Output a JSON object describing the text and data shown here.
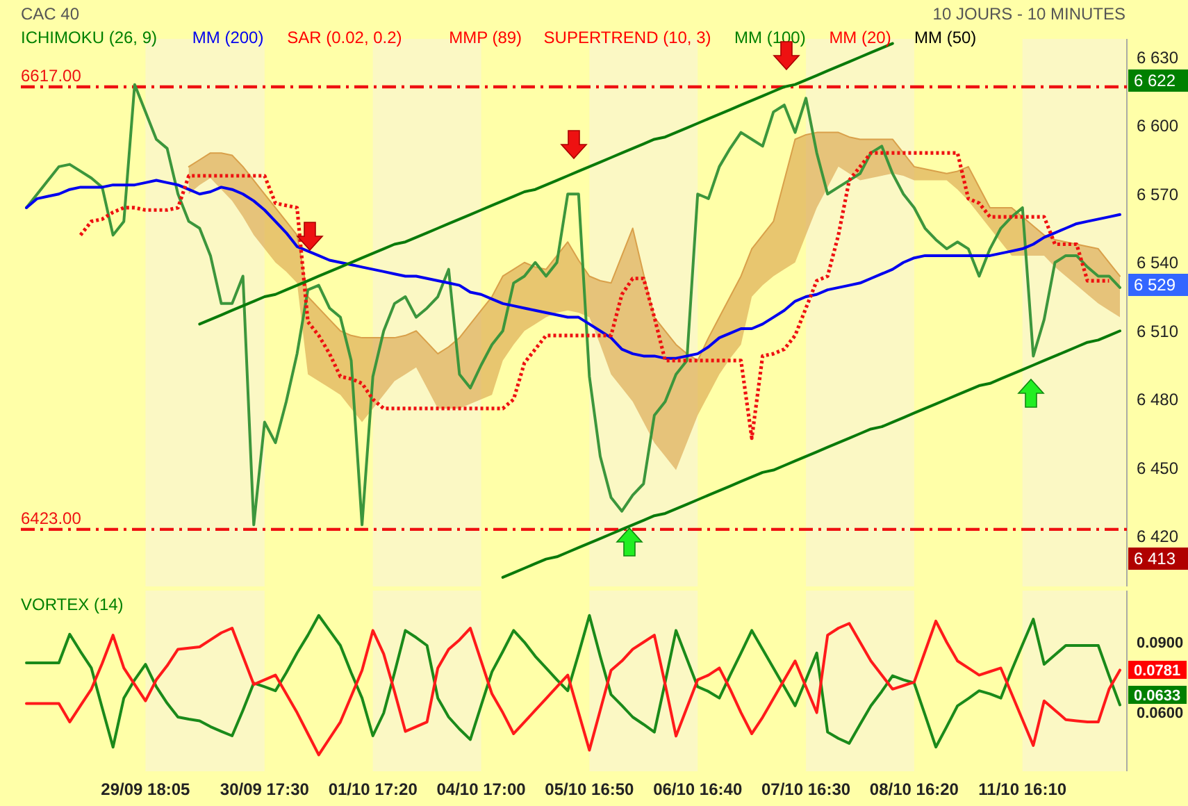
{
  "chart_data": [
    {
      "type": "line",
      "title": "CAC 40",
      "subtitle": "10 JOURS - 10 MINUTES",
      "annotations": [
        "ICHIMOKU (26, 9)",
        "MM (200)",
        "SAR (0.02, 0.2)",
        "MMP (89)",
        "SUPERTREND (10, 3)",
        "MM (100)",
        "MM (20)",
        "MM (50)",
        "6 622",
        "6 529",
        "6 413"
      ],
      "categories": [
        null,
        null,
        null,
        null,
        null,
        null,
        null,
        null,
        null,
        null,
        null,
        null,
        null,
        null,
        null,
        null,
        null,
        null,
        null,
        null,
        null,
        null,
        null,
        null,
        null,
        null,
        null,
        null,
        null,
        null,
        null,
        null,
        null,
        null,
        null,
        null,
        null,
        null,
        null,
        null,
        null,
        null,
        null,
        null,
        null,
        null,
        null,
        null,
        null,
        null,
        null,
        null,
        null,
        null,
        null,
        null,
        null,
        null,
        null,
        null,
        null,
        null,
        null,
        null,
        null,
        null,
        null,
        null,
        null,
        null,
        null,
        null,
        null,
        null,
        null,
        null,
        null,
        null,
        null,
        null,
        null,
        null,
        null,
        null,
        null,
        null,
        null,
        null,
        null,
        null,
        null,
        null,
        null,
        null,
        null,
        null,
        null,
        null,
        null,
        null,
        null,
        null
      ],
      "ylim": [
        6398,
        6638
      ],
      "yticks": [
        {
          "value": 6420,
          "label": "6 420"
        },
        {
          "value": 6450,
          "label": "6 450"
        },
        {
          "value": 6480,
          "label": "6 480"
        },
        {
          "value": 6510,
          "label": "6 510"
        },
        {
          "value": 6540,
          "label": "6 540"
        },
        {
          "value": 6570,
          "label": "6 570"
        },
        {
          "value": 6600,
          "label": "6 600"
        },
        {
          "value": 6630,
          "label": "6 630"
        }
      ],
      "tick_labels": "y",
      "grid": false,
      "marker": "none",
      "ref_lines": [
        {
          "axis": "y",
          "value": 6617,
          "label": "6617.00",
          "color": "#ee1111",
          "line_style": "dashed"
        },
        {
          "axis": "y",
          "value": 6423,
          "label": "6423.00",
          "color": "#ee1111",
          "line_style": "dashed"
        }
      ],
      "series": [
        {
          "color": "#d9a04a",
          "values": [
            null,
            null,
            null,
            null,
            null,
            null,
            null,
            null,
            null,
            null,
            null,
            null,
            null,
            null,
            null,
            6582,
            6585,
            6588,
            6588,
            6587,
            6582,
            6576,
            6570,
            6564,
            6558,
            6552,
            6525,
            6520,
            6515,
            6510,
            6508,
            6507,
            6507,
            6507,
            6507,
            6508,
            6510,
            6505,
            6500,
            6503,
            6507,
            6513,
            6519,
            6525,
            6534,
            6537,
            6540,
            6538,
            6537,
            6543,
            6549,
            6541,
            6534,
            6532,
            6531,
            6543,
            6555,
            6535,
            6516,
            6510,
            6504,
            6500,
            6497,
            6507,
            6516,
            6525,
            6534,
            6546,
            6552,
            6558,
            6576,
            6594,
            6596,
            6597,
            6597,
            6597,
            6595,
            6594,
            6594,
            6594,
            6594,
            6588,
            6582,
            6581,
            6580,
            6579,
            6580,
            6582,
            6573,
            6564,
            6564,
            6564,
            6560,
            6556,
            6552,
            6550,
            6549,
            6548,
            6547,
            6546,
            6540,
            6534
          ],
          "upper": [
            null,
            null,
            null,
            null,
            null,
            null,
            null,
            null,
            null,
            null,
            null,
            null,
            null,
            null,
            null,
            6582,
            6585,
            6588,
            6588,
            6587,
            6582,
            6576,
            6570,
            6564,
            6558,
            6552,
            6525,
            6520,
            6515,
            6510,
            6508,
            6507,
            6507,
            6507,
            6507,
            6508,
            6510,
            6505,
            6500,
            6503,
            6507,
            6513,
            6519,
            6525,
            6534,
            6537,
            6540,
            6538,
            6537,
            6543,
            6549,
            6541,
            6534,
            6532,
            6531,
            6543,
            6555,
            6535,
            6516,
            6510,
            6504,
            6500,
            6497,
            6507,
            6516,
            6525,
            6534,
            6546,
            6552,
            6558,
            6576,
            6594,
            6596,
            6597,
            6597,
            6597,
            6595,
            6594,
            6594,
            6594,
            6594,
            6588,
            6582,
            6581,
            6580,
            6579,
            6580,
            6582,
            6573,
            6564,
            6564,
            6564,
            6560,
            6556,
            6552,
            6550,
            6549,
            6548,
            6547,
            6546,
            6540,
            6534
          ],
          "lower": [
            null,
            null,
            null,
            null,
            null,
            null,
            null,
            null,
            null,
            null,
            null,
            null,
            null,
            null,
            null,
            6570,
            6574,
            6577,
            6572,
            6567,
            6560,
            6552,
            6546,
            6540,
            6536,
            6531,
            6491,
            6488,
            6485,
            6482,
            6476,
            6470,
            6476,
            6482,
            6488,
            6491,
            6494,
            6485,
            6476,
            6476,
            6476,
            6478,
            6480,
            6482,
            6497,
            6504,
            6510,
            6513,
            6516,
            6518,
            6519,
            6518,
            6516,
            6504,
            6491,
            6485,
            6479,
            6470,
            6461,
            6455,
            6449,
            6461,
            6473,
            6482,
            6491,
            6498,
            6504,
            6525,
            6530,
            6534,
            6537,
            6540,
            6552,
            6564,
            6573,
            6582,
            6579,
            6576,
            6577,
            6578,
            6579,
            6578,
            6576,
            6576,
            6576,
            6576,
            6572,
            6567,
            6561,
            6555,
            6549,
            6543,
            6543,
            6543,
            6543,
            6538,
            6534,
            6530,
            6526,
            6522,
            6519,
            6516
          ]
        },
        {
          "color": "#3c963c",
          "values": [
            6564,
            6570,
            6576,
            6582,
            6583,
            6580,
            6577,
            6573,
            6552,
            6558,
            6618,
            6606,
            6594,
            6590,
            6570,
            6558,
            6555,
            6543,
            6522,
            6522,
            6534,
            6425,
            6470,
            6461,
            6479,
            6500,
            6528,
            6530,
            6520,
            6516,
            6497,
            6425,
            6490,
            6510,
            6522,
            6525,
            6516,
            6520,
            6525,
            6537,
            6491,
            6485,
            6495,
            6504,
            6510,
            6531,
            6534,
            6540,
            6534,
            6540,
            6570,
            6570,
            6490,
            6455,
            6437,
            6431,
            6438,
            6443,
            6473,
            6479,
            6491,
            6497,
            6570,
            6568,
            6582,
            6590,
            6597,
            6594,
            6591,
            6606,
            6609,
            6597,
            6612,
            6588,
            6570,
            6573,
            6576,
            6579,
            6588,
            6591,
            6579,
            6570,
            6564,
            6555,
            6550,
            6546,
            6549,
            6546,
            6534,
            6546,
            6555,
            6560,
            6564,
            6499,
            6515,
            6540,
            6543,
            6543,
            6538,
            6534,
            6534,
            6529
          ]
        },
        {
          "color": "#0000ee",
          "values": [
            6564,
            6568,
            6569,
            6570,
            6572,
            6573,
            6573,
            6573,
            6574,
            6574,
            6574,
            6575,
            6576,
            6575,
            6574,
            6572,
            6570,
            6571,
            6573,
            6572,
            6570,
            6567,
            6563,
            6558,
            6553,
            6547,
            6545,
            6543,
            6541,
            6540,
            6539,
            6538,
            6537,
            6536,
            6535,
            6534,
            6534,
            6533,
            6532,
            6531,
            6530,
            6527,
            6526,
            6524,
            6522,
            6521,
            6520,
            6519,
            6518,
            6517,
            6516,
            6516,
            6513,
            6510,
            6507,
            6502,
            6500,
            6499,
            6499,
            6498,
            6498,
            6499,
            6500,
            6503,
            6507,
            6509,
            6511,
            6511,
            6513,
            6516,
            6519,
            6523,
            6525,
            6526,
            6528,
            6529,
            6530,
            6531,
            6533,
            6535,
            6537,
            6540,
            6542,
            6543,
            6543,
            6543,
            6543,
            6543,
            6543,
            6543,
            6544,
            6545,
            6546,
            6548,
            6551,
            6553,
            6555,
            6557,
            6558,
            6559,
            6560,
            6561
          ]
        },
        {
          "color": "#ee1111",
          "line_style": "dotted",
          "values": [
            null,
            null,
            null,
            null,
            null,
            6552,
            6558,
            6559,
            6562,
            6564,
            6564,
            6563,
            6563,
            6563,
            6564,
            6578,
            6578,
            6578,
            6578,
            6578,
            6578,
            6578,
            6578,
            6566,
            6565,
            6564,
            6514,
            6508,
            6500,
            6490,
            6489,
            6487,
            6480,
            6476,
            6476,
            6476,
            6476,
            6476,
            6476,
            6476,
            6476,
            6476,
            6476,
            6476,
            6476,
            6480,
            6496,
            6502,
            6508,
            6508,
            6508,
            6508,
            6508,
            6508,
            6508,
            6526,
            6533,
            6533,
            6516,
            6497,
            6497,
            6497,
            6497,
            6497,
            6497,
            6497,
            6497,
            6463,
            6499,
            6500,
            6502,
            6508,
            6520,
            6532,
            6534,
            6552,
            6576,
            6582,
            6588,
            6588,
            6588,
            6588,
            6588,
            6588,
            6588,
            6588,
            6588,
            6568,
            6566,
            6560,
            6560,
            6560,
            6560,
            6560,
            6560,
            6548,
            6548,
            6548,
            6532,
            6532,
            6532,
            null
          ]
        },
        {
          "color": "#0a7a0a",
          "values": [
            null,
            null,
            null,
            null,
            null,
            null,
            null,
            null,
            null,
            null,
            null,
            null,
            null,
            null,
            null,
            null,
            6513,
            6515,
            6517,
            6519,
            6521,
            6523,
            6525,
            6526,
            6528,
            6530,
            6532,
            6534,
            6536,
            6538,
            6540,
            6542,
            6544,
            6546,
            6548,
            6549,
            6551,
            6553,
            6555,
            6557,
            6559,
            6561,
            6563,
            6565,
            6567,
            6569,
            6571,
            6572,
            6574,
            6576,
            6578,
            6580,
            6582,
            6584,
            6586,
            6588,
            6590,
            6592,
            6594,
            6595,
            6597,
            6599,
            6601,
            6603,
            6605,
            6607,
            6609,
            6611,
            6613,
            6615,
            6617,
            6618,
            6620,
            6622,
            6624,
            6626,
            6628,
            6630,
            6632,
            6634,
            6636,
            null,
            null,
            null,
            null,
            null,
            null,
            null,
            null,
            null,
            null,
            null,
            null,
            null,
            null,
            null,
            null,
            null,
            null,
            null,
            null,
            null
          ]
        },
        {
          "color": "#0a7a0a",
          "values": [
            null,
            null,
            null,
            null,
            null,
            null,
            null,
            null,
            null,
            null,
            null,
            null,
            null,
            null,
            null,
            null,
            null,
            null,
            null,
            null,
            null,
            null,
            null,
            null,
            null,
            null,
            null,
            null,
            null,
            null,
            null,
            null,
            null,
            null,
            null,
            null,
            null,
            null,
            null,
            null,
            null,
            null,
            null,
            null,
            6402,
            6404,
            6406,
            6408,
            6410,
            6411,
            6413,
            6415,
            6417,
            6419,
            6421,
            6423,
            6425,
            6427,
            6429,
            6430,
            6432,
            6434,
            6436,
            6438,
            6440,
            6442,
            6444,
            6446,
            6448,
            6449,
            6451,
            6453,
            6455,
            6457,
            6459,
            6461,
            6463,
            6465,
            6467,
            6468,
            6470,
            6472,
            6474,
            6476,
            6478,
            6480,
            6482,
            6484,
            6486,
            6487,
            6489,
            6491,
            6493,
            6495,
            6497,
            6499,
            6501,
            6503,
            6505,
            6506,
            6508,
            6510
          ]
        }
      ]
    },
    {
      "type": "line",
      "title": "VORTEX (14)",
      "annotations": [
        "0.0781",
        "0.0633"
      ],
      "categories": [
        null,
        null,
        null,
        null,
        null,
        null,
        null,
        null,
        null,
        null,
        null,
        "29/09 18:05",
        null,
        null,
        null,
        null,
        null,
        null,
        null,
        null,
        null,
        null,
        "30/09 17:30",
        null,
        null,
        null,
        null,
        null,
        null,
        null,
        null,
        null,
        "01/10 17:20",
        null,
        null,
        null,
        null,
        null,
        null,
        null,
        null,
        null,
        "04/10 17:00",
        null,
        null,
        null,
        null,
        null,
        null,
        null,
        null,
        null,
        "05/10 16:50",
        null,
        null,
        null,
        null,
        null,
        null,
        null,
        null,
        null,
        "06/10 16:40",
        null,
        null,
        null,
        null,
        null,
        null,
        null,
        null,
        null,
        "07/10 16:30",
        null,
        null,
        null,
        null,
        null,
        null,
        null,
        null,
        null,
        "08/10 16:20",
        null,
        null,
        null,
        null,
        null,
        null,
        null,
        null,
        null,
        "11/10 16:10",
        null,
        null,
        null,
        null,
        null,
        null,
        null,
        null,
        null
      ],
      "ylim": [
        0.035,
        0.112
      ],
      "yticks": [
        {
          "value": 0.06,
          "label": "0.0600"
        },
        {
          "value": 0.09,
          "label": "0.0900"
        }
      ],
      "grid": false,
      "marker": "none",
      "series": [
        {
          "color": "#1a8a1a",
          "values": [
            0.0812,
            0.0812,
            0.0812,
            0.0812,
            0.0934,
            0.086,
            0.079,
            0.062,
            0.0453,
            0.0662,
            0.074,
            0.0806,
            0.071,
            0.064,
            0.0581,
            0.0572,
            0.0565,
            0.054,
            0.052,
            0.0501,
            0.061,
            0.0726,
            0.071,
            0.0693,
            0.077,
            0.0854,
            0.093,
            0.1014,
            0.095,
            0.0886,
            0.077,
            0.0662,
            0.0501,
            0.0598,
            0.077,
            0.095,
            0.092,
            0.0886,
            0.0662,
            0.0581,
            0.053,
            0.0485,
            0.063,
            0.0774,
            0.086,
            0.095,
            0.09,
            0.084,
            0.079,
            0.074,
            0.0693,
            0.085,
            0.1014,
            0.084,
            0.0677,
            0.063,
            0.0581,
            0.055,
            0.0517,
            0.073,
            0.095,
            0.083,
            0.071,
            0.069,
            0.0662,
            0.076,
            0.0854,
            0.095,
            0.087,
            0.079,
            0.071,
            0.0629,
            0.074,
            0.0854,
            0.0517,
            0.049,
            0.0469,
            0.055,
            0.0629,
            0.069,
            0.0757,
            0.074,
            0.0726,
            0.059,
            0.0453,
            0.054,
            0.0629,
            0.066,
            0.0693,
            0.068,
            0.0662,
            0.078,
            0.089,
            0.0998,
            0.0806,
            0.0846,
            0.0886,
            0.0886,
            0.0886,
            0.0886,
            0.0757,
            0.0633
          ]
        },
        {
          "color": "#ff1a1a",
          "values": [
            0.0639,
            0.0639,
            0.0639,
            0.0639,
            0.056,
            0.063,
            0.07,
            0.081,
            0.093,
            0.079,
            0.072,
            0.065,
            0.074,
            0.08,
            0.087,
            0.0875,
            0.088,
            0.091,
            0.094,
            0.096,
            0.084,
            0.072,
            0.074,
            0.076,
            0.068,
            0.06,
            0.051,
            0.042,
            0.049,
            0.056,
            0.067,
            0.078,
            0.095,
            0.085,
            0.069,
            0.052,
            0.054,
            0.056,
            0.079,
            0.087,
            0.091,
            0.096,
            0.082,
            0.068,
            0.06,
            0.051,
            0.056,
            0.061,
            0.066,
            0.071,
            0.076,
            0.06,
            0.044,
            0.061,
            0.078,
            0.082,
            0.087,
            0.09,
            0.093,
            0.072,
            0.05,
            0.062,
            0.074,
            0.076,
            0.079,
            0.07,
            0.06,
            0.051,
            0.058,
            0.066,
            0.074,
            0.082,
            0.071,
            0.06,
            0.093,
            0.096,
            0.098,
            0.09,
            0.082,
            0.076,
            0.07,
            0.0715,
            0.073,
            0.086,
            0.099,
            0.09,
            0.082,
            0.079,
            0.076,
            0.0775,
            0.079,
            0.068,
            0.057,
            0.046,
            0.065,
            0.061,
            0.057,
            0.0565,
            0.056,
            0.056,
            0.07,
            0.0781
          ]
        }
      ]
    }
  ]
}
